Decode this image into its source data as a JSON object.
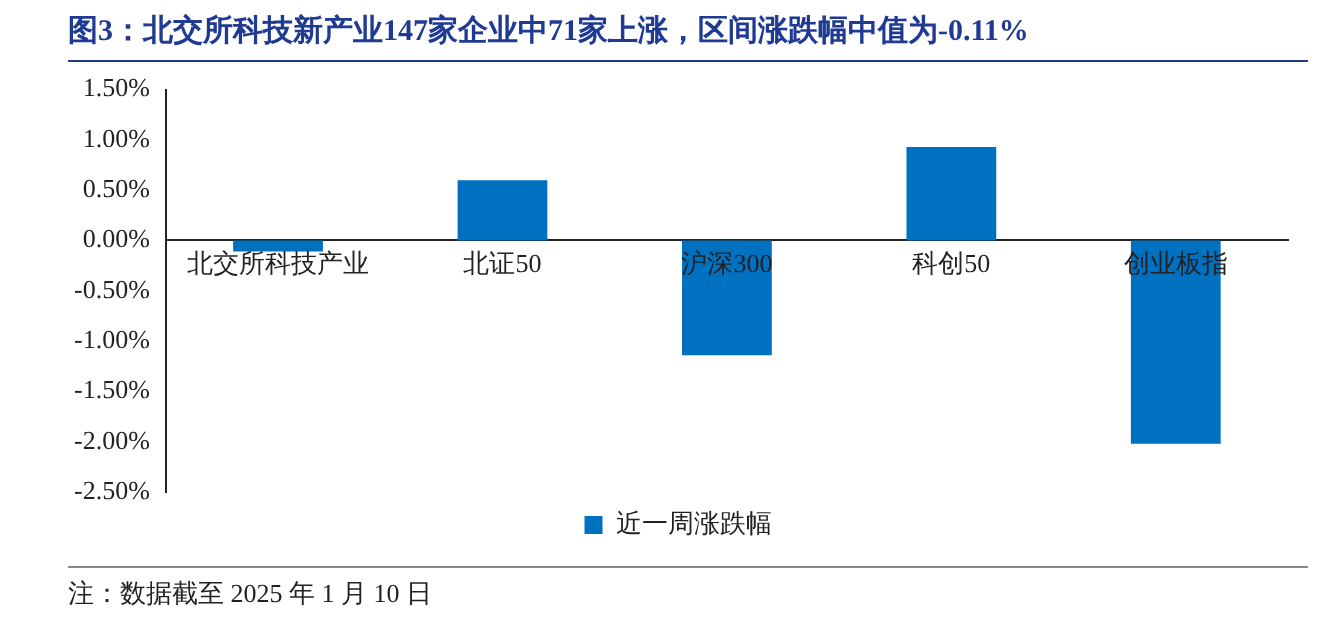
{
  "chart_data": {
    "type": "bar",
    "title": "图3：北交所科技新产业147家企业中71家上涨，区间涨跌幅中值为-0.11%",
    "categories": [
      "北交所科技产业",
      "北证50",
      "沪深300",
      "科创50",
      "创业板指"
    ],
    "series": [
      {
        "name": "近一周涨跌幅",
        "color": "#0070c0",
        "values": [
          -0.11,
          0.6,
          -1.14,
          0.93,
          -2.02
        ]
      }
    ],
    "ylim": [
      -2.5,
      1.5
    ],
    "yticks": [
      {
        "value": -2.5,
        "label": "-2.50%"
      },
      {
        "value": -2,
        "label": "-2.00%"
      },
      {
        "value": -1.5,
        "label": "-1.50%"
      },
      {
        "value": -1,
        "label": "-1.00%"
      },
      {
        "value": -0.5,
        "label": "-0.50%"
      },
      {
        "value": 0,
        "label": "0.00%"
      },
      {
        "value": 0.5,
        "label": "0.50%"
      },
      {
        "value": 1,
        "label": "1.00%"
      },
      {
        "value": 1.5,
        "label": "1.50%"
      }
    ],
    "grid": false,
    "legend": "bottom",
    "annotations": [
      "注：数据截至 2025 年 1 月 10 日"
    ]
  }
}
